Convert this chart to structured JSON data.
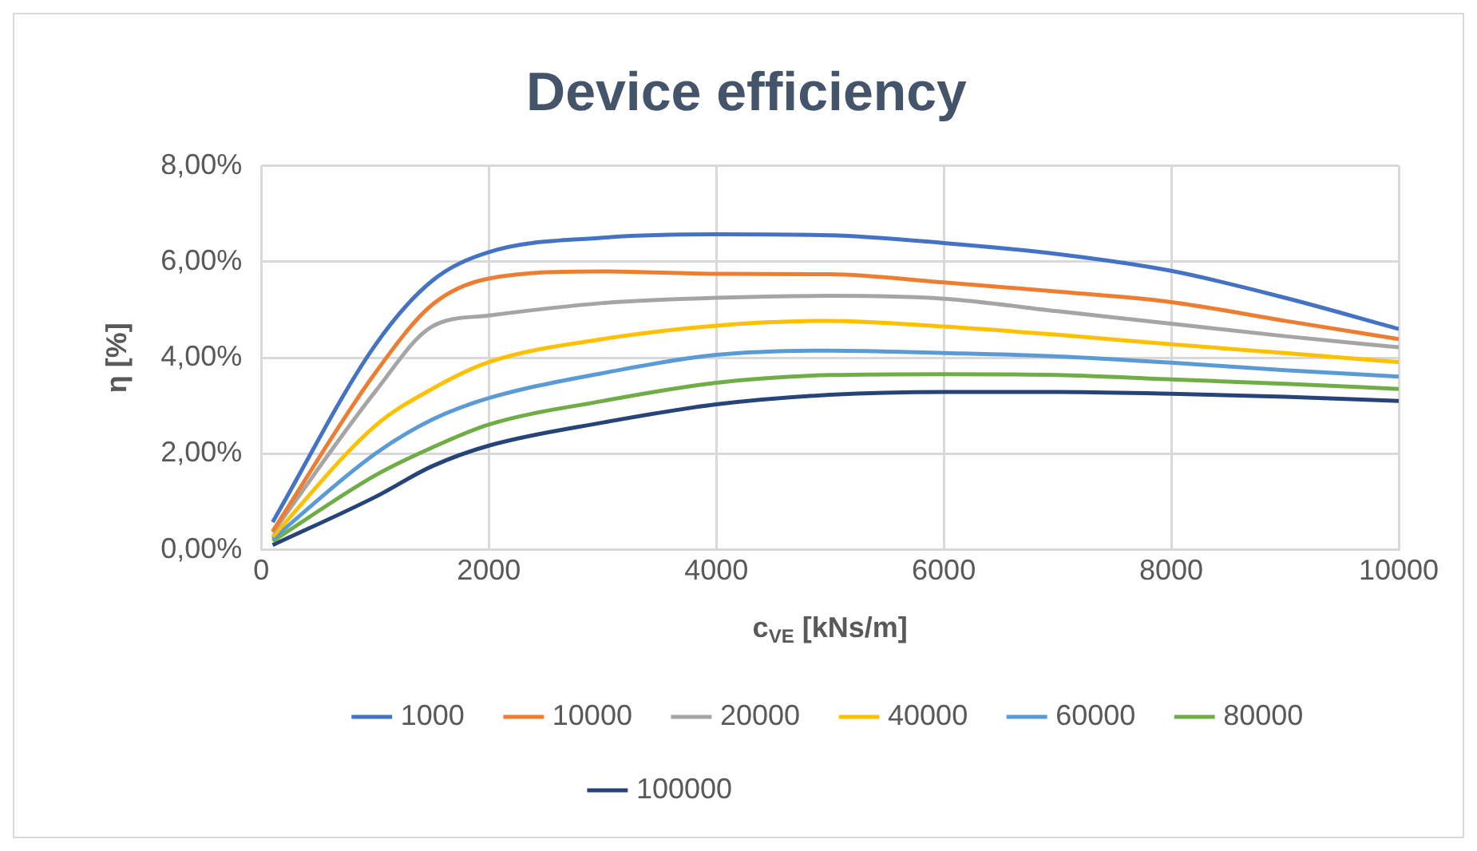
{
  "chart_data": {
    "type": "line",
    "title": "Device efficiency",
    "xlabel": "c$_{VE}$ [kNs/m]",
    "ylabel": "η [%]",
    "x": [
      100,
      1000,
      1500,
      2000,
      3000,
      4000,
      5000,
      6000,
      7000,
      8000,
      9000,
      10000
    ],
    "xlim": [
      0,
      10000
    ],
    "xticks": [
      0,
      2000,
      4000,
      6000,
      8000,
      10000
    ],
    "ylim": [
      0,
      8
    ],
    "yticks": [
      {
        "value": 0,
        "label": "0,00%"
      },
      {
        "value": 2,
        "label": "2,00%"
      },
      {
        "value": 4,
        "label": "4,00%"
      },
      {
        "value": 6,
        "label": "6,00%"
      },
      {
        "value": 8,
        "label": "8,00%"
      }
    ],
    "grid": true,
    "legend": "bottom",
    "marker": "none",
    "line_style": "solid",
    "series": [
      {
        "name": "1000",
        "color": "#4472c4",
        "values": [
          0.58,
          4.26,
          5.6,
          6.2,
          6.5,
          6.57,
          6.55,
          6.39,
          6.16,
          5.81,
          5.25,
          4.6
        ]
      },
      {
        "name": "10000",
        "color": "#ed7d31",
        "values": [
          0.39,
          3.68,
          5.1,
          5.65,
          5.8,
          5.75,
          5.74,
          5.57,
          5.38,
          5.16,
          4.77,
          4.39
        ]
      },
      {
        "name": "20000",
        "color": "#a5a5a5",
        "values": [
          0.36,
          3.29,
          4.65,
          4.88,
          5.14,
          5.25,
          5.29,
          5.23,
          4.97,
          4.71,
          4.45,
          4.22
        ]
      },
      {
        "name": "40000",
        "color": "#ffc000",
        "values": [
          0.28,
          2.58,
          3.35,
          3.91,
          4.39,
          4.67,
          4.77,
          4.65,
          4.48,
          4.28,
          4.1,
          3.91
        ]
      },
      {
        "name": "60000",
        "color": "#5b9bd5",
        "values": [
          0.23,
          2.0,
          2.71,
          3.16,
          3.68,
          4.06,
          4.15,
          4.1,
          4.03,
          3.9,
          3.74,
          3.61
        ]
      },
      {
        "name": "80000",
        "color": "#70ad47",
        "values": [
          0.18,
          1.55,
          2.13,
          2.61,
          3.1,
          3.48,
          3.64,
          3.66,
          3.64,
          3.55,
          3.46,
          3.35
        ]
      },
      {
        "name": "100000",
        "color": "#264478",
        "values": [
          0.1,
          1.1,
          1.74,
          2.17,
          2.65,
          3.03,
          3.23,
          3.29,
          3.29,
          3.25,
          3.19,
          3.1
        ]
      }
    ]
  }
}
